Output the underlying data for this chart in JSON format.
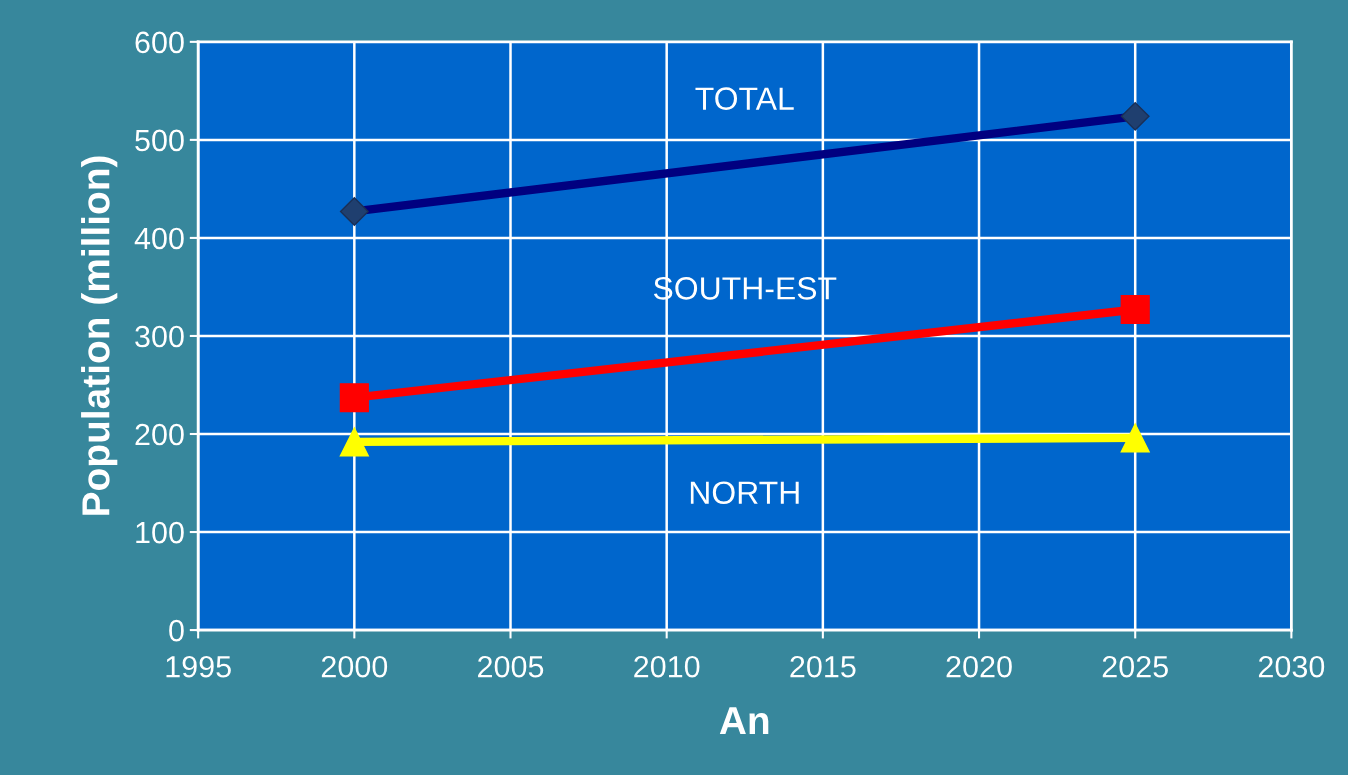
{
  "chart_data": {
    "type": "line",
    "xlabel": "An",
    "ylabel": "Population (million)",
    "x": [
      2000,
      2025
    ],
    "series": [
      {
        "name": "TOTAL",
        "color": "#000080",
        "values": [
          427,
          524
        ],
        "marker": "diamond"
      },
      {
        "name": "SOUTH-EST",
        "color": "#ff0000",
        "values": [
          237,
          327
        ],
        "marker": "square"
      },
      {
        "name": "NORTH",
        "color": "#ffff00",
        "values": [
          192,
          196
        ],
        "marker": "triangle"
      }
    ],
    "xlim": [
      1995,
      2030
    ],
    "xticks": [
      1995,
      2000,
      2005,
      2010,
      2015,
      2020,
      2025,
      2030
    ],
    "ylim": [
      0,
      600
    ],
    "yticks": [
      0,
      100,
      200,
      300,
      400,
      500,
      600
    ],
    "grid": true,
    "legend": false,
    "line_style": "solid"
  }
}
